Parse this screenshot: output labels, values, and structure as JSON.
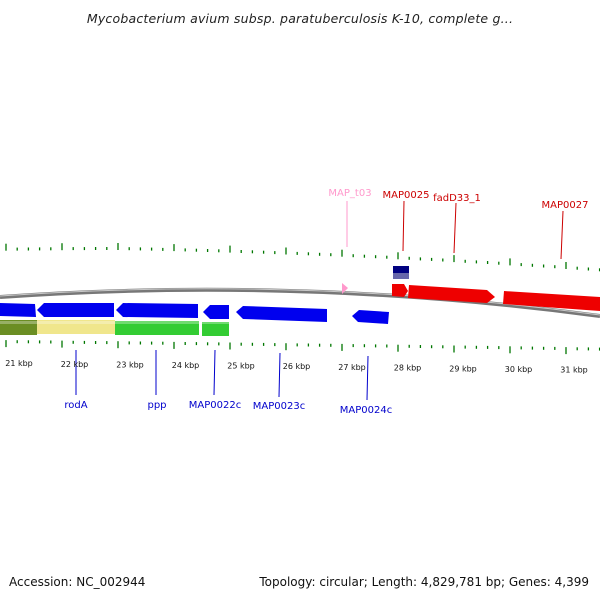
{
  "title": "Mycobacterium avium subsp. paratuberculosis K-10, complete g...",
  "footer": {
    "accession": "Accession: NC_002944",
    "summary": "Topology: circular; Length: 4,829,781 bp; Genes: 4,399"
  },
  "colors": {
    "forward_gene": "#ff0000",
    "reverse_gene": "#0000ff",
    "trna": "#ff99cc",
    "backbone": "#888888",
    "ticks": "#007700",
    "cds_light": "#f0e68c",
    "cds_green": "#33cc33",
    "cds_olive": "#6b8e23",
    "navy": "#000080"
  },
  "scale": {
    "labels": [
      "21 kbp",
      "22 kbp",
      "23 kbp",
      "24 kbp",
      "25 kbp",
      "26 kbp",
      "27 kbp",
      "28 kbp",
      "29 kbp",
      "30 kbp",
      "31 kbp"
    ]
  },
  "features": {
    "forward": [
      "MAP_t03",
      "MAP0025",
      "fadD33_1",
      "MAP0027"
    ],
    "reverse": [
      "rodA",
      "ppp",
      "MAP0022c",
      "MAP0023c",
      "MAP0024c"
    ]
  }
}
